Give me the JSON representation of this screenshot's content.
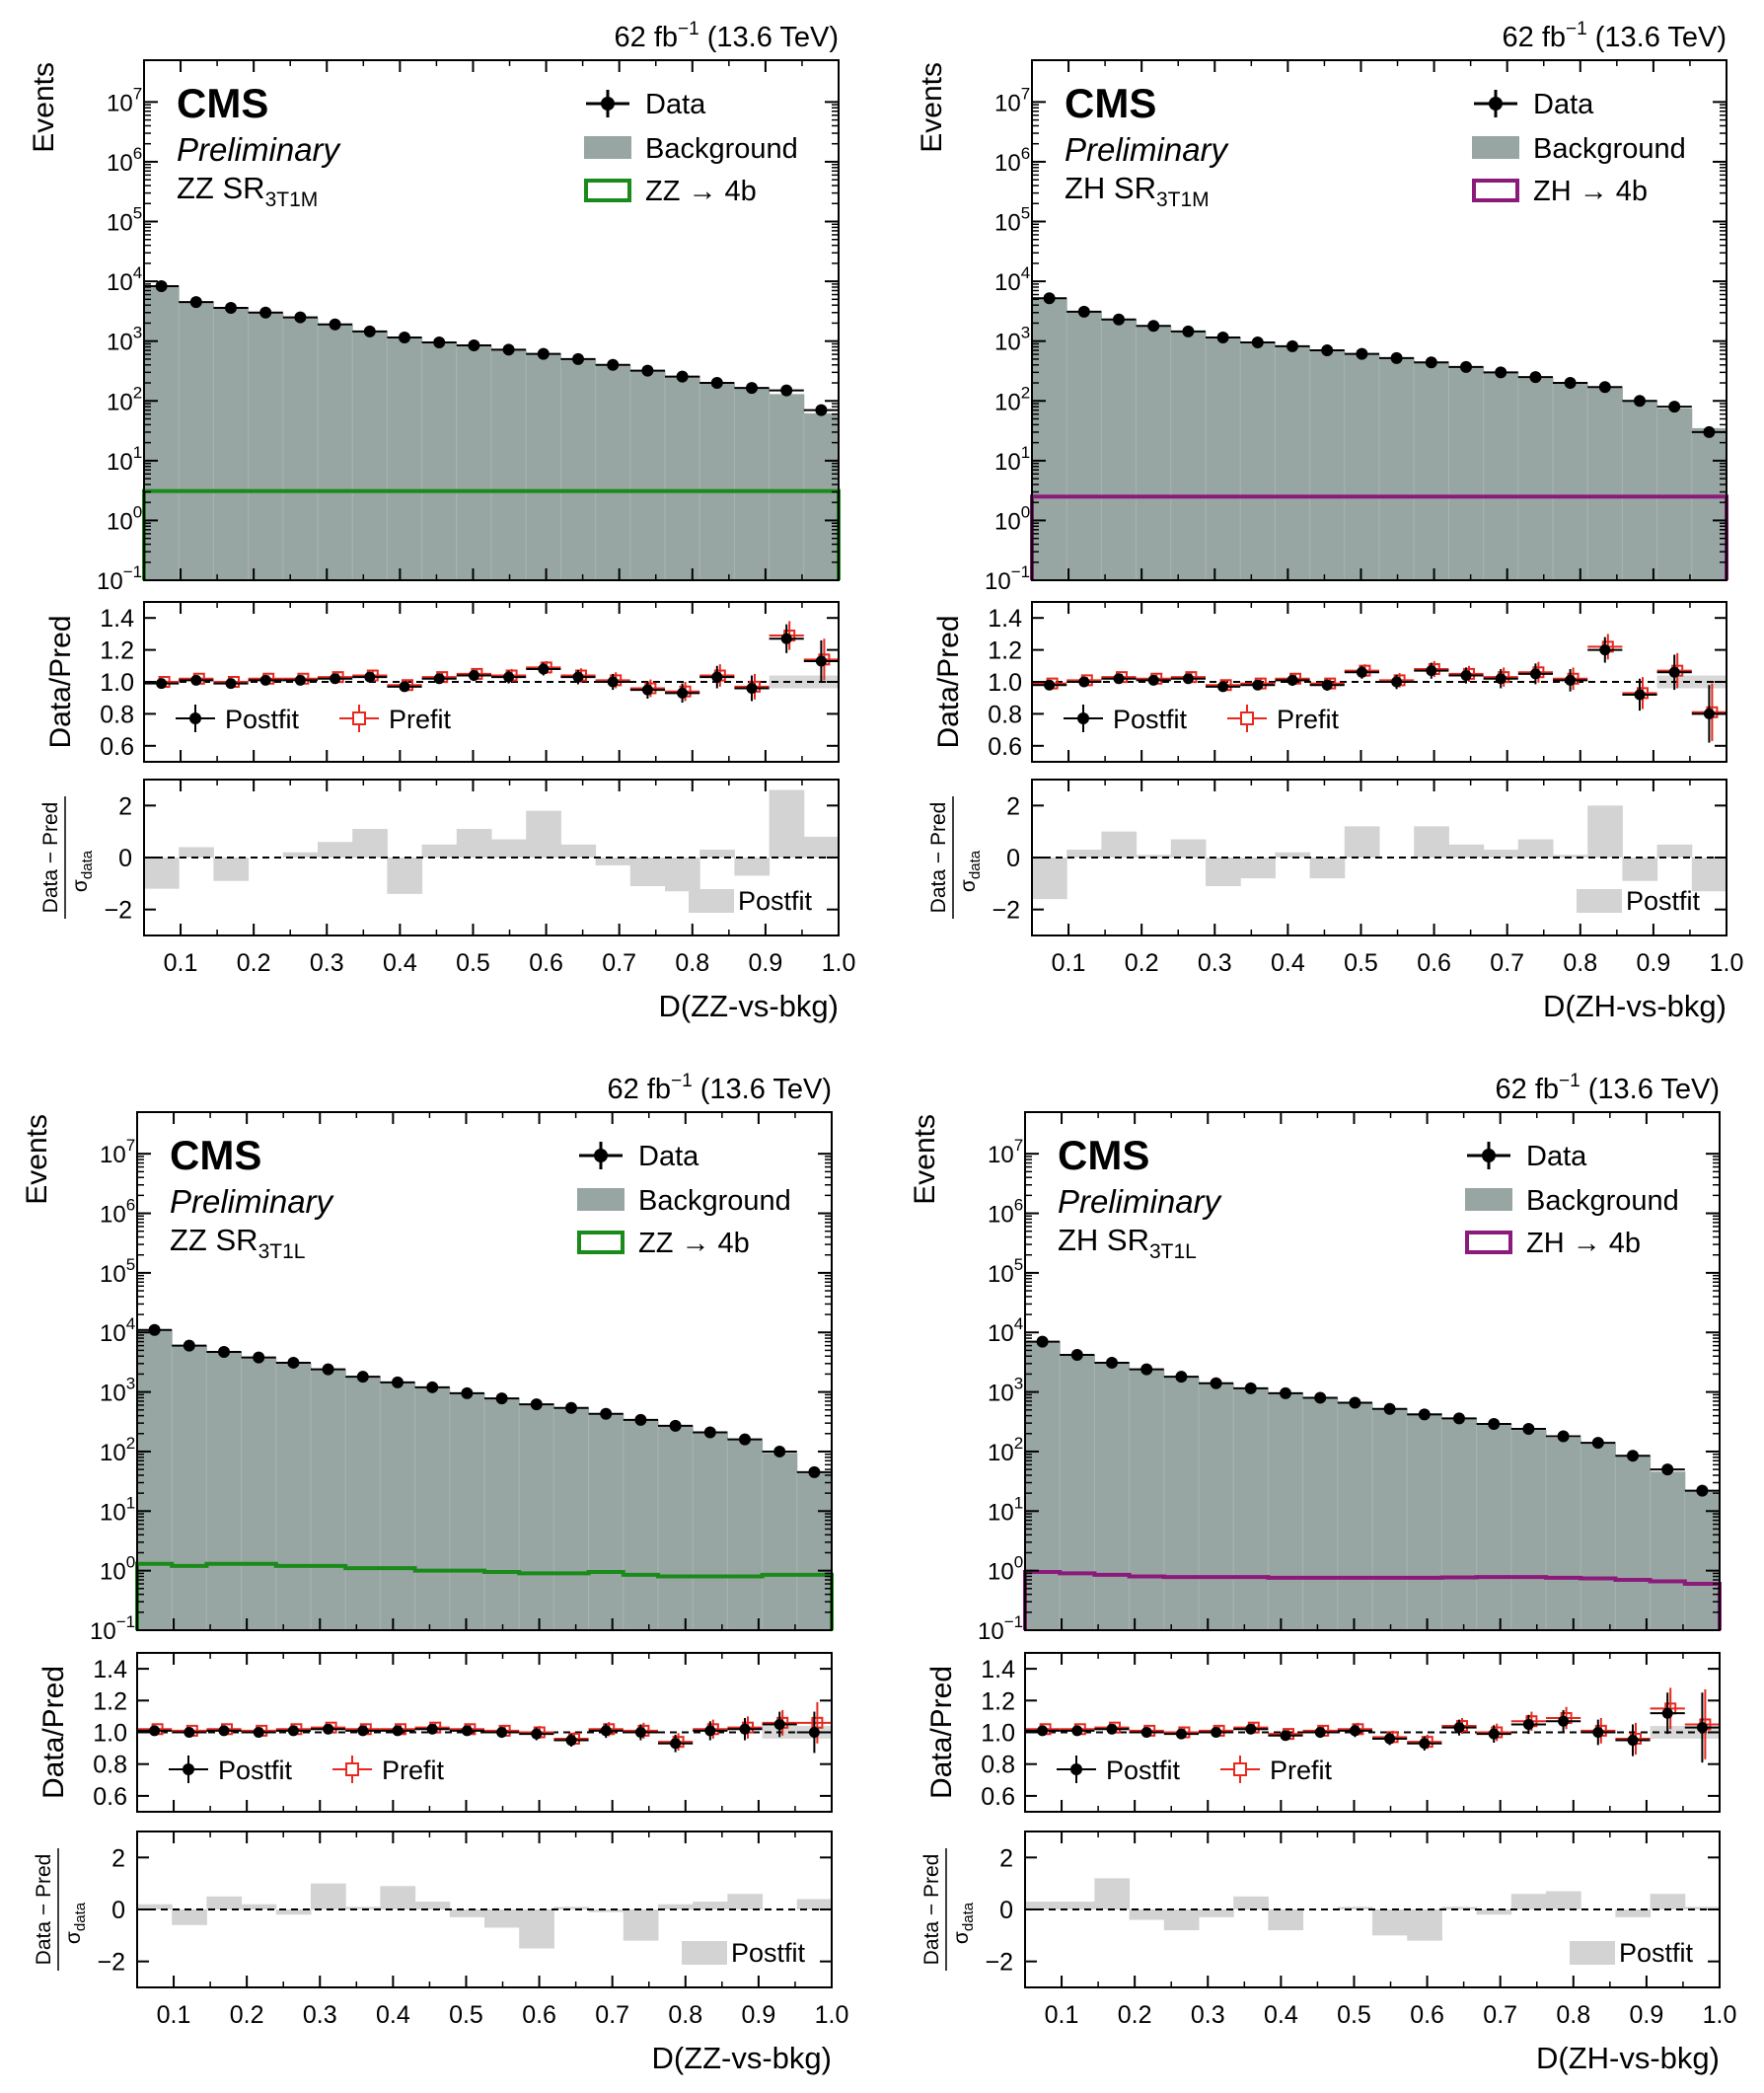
{
  "figure": {
    "chart_data": [
      {
        "type": "bar",
        "id": "zz-3t1m",
        "lumi_label": "62 fb",
        "lumi_exp": "−1",
        "energy": " (13.6 TeV)",
        "experiment": "CMS",
        "status": "Preliminary",
        "region_prefix": "ZZ SR",
        "region_sub": "3T1M",
        "xlabel": "D(ZZ-vs-bkg)",
        "ylabel": "Events",
        "ratio_ylabel": "Data/Pred",
        "pull_ylabel_num": "Data − Pred",
        "pull_ylabel_den": "σ",
        "pull_ylabel_den_sub": "data",
        "xlim": [
          0.05,
          1.0
        ],
        "ylim": [
          0.1,
          50000000
        ],
        "ratio_ylim": [
          0.5,
          1.5
        ],
        "pull_ylim": [
          -3,
          3
        ],
        "xticks": [
          "0.1",
          "0.2",
          "0.3",
          "0.4",
          "0.5",
          "0.6",
          "0.7",
          "0.8",
          "0.9",
          "1.0"
        ],
        "ratio_yticks": [
          "0.6",
          "0.8",
          "1.0",
          "1.2",
          "1.4"
        ],
        "pull_yticks": [
          "−2",
          "0",
          "2"
        ],
        "legend": {
          "data": "Data",
          "background": "Background",
          "signal": "ZZ → 4b"
        },
        "ratio_legend": {
          "postfit": "Postfit",
          "prefit": "Prefit"
        },
        "pull_legend": "Postfit",
        "signal_color": "#1a8a1a",
        "bins": [
          0.05,
          0.0975,
          0.145,
          0.1925,
          0.24,
          0.2875,
          0.335,
          0.3825,
          0.43,
          0.4775,
          0.525,
          0.5725,
          0.62,
          0.6675,
          0.715,
          0.7625,
          0.81,
          0.8575,
          0.905,
          0.9525,
          1.0
        ],
        "data": [
          8300,
          4500,
          3600,
          3000,
          2500,
          1900,
          1450,
          1150,
          950,
          850,
          720,
          610,
          500,
          400,
          320,
          255,
          200,
          165,
          150,
          70
        ],
        "background": [
          8200,
          4400,
          3580,
          2950,
          2450,
          1860,
          1420,
          1160,
          930,
          830,
          700,
          600,
          490,
          400,
          325,
          260,
          195,
          165,
          130,
          62
        ],
        "signal": [
          3.1,
          3.1,
          3.1,
          3.1,
          3.1,
          3.1,
          3.1,
          3.1,
          3.1,
          3.1,
          3.1,
          3.1,
          3.1,
          3.1,
          3.1,
          3.1,
          3.1,
          3.1,
          3.1,
          3.1
        ],
        "ratio_postfit": [
          0.99,
          1.01,
          0.99,
          1.01,
          1.01,
          1.02,
          1.03,
          0.97,
          1.02,
          1.04,
          1.03,
          1.08,
          1.03,
          1.0,
          0.95,
          0.93,
          1.03,
          0.96,
          1.27,
          1.13
        ],
        "ratio_prefit": [
          1.0,
          1.02,
          1.0,
          1.02,
          1.02,
          1.03,
          1.04,
          0.98,
          1.03,
          1.05,
          1.04,
          1.09,
          1.04,
          1.01,
          0.96,
          0.94,
          1.04,
          0.97,
          1.29,
          1.14
        ],
        "ratio_err": [
          0.01,
          0.015,
          0.015,
          0.02,
          0.02,
          0.025,
          0.025,
          0.03,
          0.03,
          0.035,
          0.04,
          0.04,
          0.045,
          0.05,
          0.055,
          0.06,
          0.07,
          0.08,
          0.09,
          0.13
        ],
        "pull": [
          -1.2,
          0.4,
          -0.9,
          0.0,
          0.2,
          0.6,
          1.1,
          -1.4,
          0.5,
          1.1,
          0.7,
          1.8,
          0.5,
          -0.3,
          -1.1,
          -1.3,
          0.3,
          -0.7,
          2.6,
          0.8
        ]
      },
      {
        "type": "bar",
        "id": "zh-3t1m",
        "lumi_label": "62 fb",
        "lumi_exp": "−1",
        "energy": " (13.6 TeV)",
        "experiment": "CMS",
        "status": "Preliminary",
        "region_prefix": "ZH SR",
        "region_sub": "3T1M",
        "xlabel": "D(ZH-vs-bkg)",
        "ylabel": "Events",
        "ratio_ylabel": "Data/Pred",
        "pull_ylabel_num": "Data − Pred",
        "pull_ylabel_den": "σ",
        "pull_ylabel_den_sub": "data",
        "xlim": [
          0.05,
          1.0
        ],
        "ylim": [
          0.1,
          50000000
        ],
        "ratio_ylim": [
          0.5,
          1.5
        ],
        "pull_ylim": [
          -3,
          3
        ],
        "xticks": [
          "0.1",
          "0.2",
          "0.3",
          "0.4",
          "0.5",
          "0.6",
          "0.7",
          "0.8",
          "0.9",
          "1.0"
        ],
        "ratio_yticks": [
          "0.6",
          "0.8",
          "1.0",
          "1.2",
          "1.4"
        ],
        "pull_yticks": [
          "−2",
          "0",
          "2"
        ],
        "legend": {
          "data": "Data",
          "background": "Background",
          "signal": "ZH → 4b"
        },
        "ratio_legend": {
          "postfit": "Postfit",
          "prefit": "Prefit"
        },
        "pull_legend": "Postfit",
        "signal_color": "#8b1a7a",
        "bins": [
          0.05,
          0.0975,
          0.145,
          0.1925,
          0.24,
          0.2875,
          0.335,
          0.3825,
          0.43,
          0.4775,
          0.525,
          0.5725,
          0.62,
          0.6675,
          0.715,
          0.7625,
          0.81,
          0.8575,
          0.905,
          0.9525,
          1.0
        ],
        "data": [
          5200,
          3100,
          2300,
          1800,
          1450,
          1150,
          950,
          820,
          700,
          610,
          520,
          440,
          370,
          300,
          250,
          200,
          170,
          100,
          80,
          30
        ],
        "background": [
          5150,
          3050,
          2270,
          1780,
          1430,
          1150,
          950,
          810,
          700,
          600,
          510,
          430,
          365,
          300,
          245,
          195,
          165,
          100,
          75,
          35
        ],
        "signal": [
          2.5,
          2.5,
          2.5,
          2.5,
          2.5,
          2.5,
          2.5,
          2.5,
          2.5,
          2.5,
          2.5,
          2.5,
          2.5,
          2.5,
          2.5,
          2.5,
          2.5,
          2.5,
          2.5,
          2.5
        ],
        "ratio_postfit": [
          0.98,
          1.0,
          1.02,
          1.01,
          1.02,
          0.97,
          0.98,
          1.01,
          0.98,
          1.06,
          1.0,
          1.07,
          1.04,
          1.02,
          1.05,
          1.01,
          1.2,
          0.92,
          1.06,
          0.8
        ],
        "ratio_prefit": [
          0.99,
          1.01,
          1.03,
          1.02,
          1.03,
          0.98,
          0.99,
          1.02,
          0.99,
          1.07,
          1.01,
          1.08,
          1.05,
          1.03,
          1.06,
          1.02,
          1.22,
          0.93,
          1.07,
          0.81
        ],
        "ratio_err": [
          0.015,
          0.02,
          0.02,
          0.025,
          0.025,
          0.03,
          0.03,
          0.035,
          0.035,
          0.04,
          0.045,
          0.05,
          0.05,
          0.06,
          0.065,
          0.07,
          0.08,
          0.1,
          0.11,
          0.18
        ],
        "pull": [
          -1.6,
          0.3,
          1.0,
          0.1,
          0.7,
          -1.1,
          -0.8,
          0.2,
          -0.8,
          1.2,
          0.0,
          1.2,
          0.5,
          0.3,
          0.7,
          0.1,
          2.0,
          -0.9,
          0.5,
          -1.3
        ]
      },
      {
        "type": "bar",
        "id": "zz-3t1l",
        "lumi_label": "62 fb",
        "lumi_exp": "−1",
        "energy": " (13.6 TeV)",
        "experiment": "CMS",
        "status": "Preliminary",
        "region_prefix": "ZZ SR",
        "region_sub": "3T1L",
        "xlabel": "D(ZZ-vs-bkg)",
        "ylabel": "Events",
        "ratio_ylabel": "Data/Pred",
        "pull_ylabel_num": "Data − Pred",
        "pull_ylabel_den": "σ",
        "pull_ylabel_den_sub": "data",
        "xlim": [
          0.05,
          1.0
        ],
        "ylim": [
          0.1,
          50000000
        ],
        "ratio_ylim": [
          0.5,
          1.5
        ],
        "pull_ylim": [
          -3,
          3
        ],
        "xticks": [
          "0.1",
          "0.2",
          "0.3",
          "0.4",
          "0.5",
          "0.6",
          "0.7",
          "0.8",
          "0.9",
          "1.0"
        ],
        "ratio_yticks": [
          "0.6",
          "0.8",
          "1.0",
          "1.2",
          "1.4"
        ],
        "pull_yticks": [
          "−2",
          "0",
          "2"
        ],
        "legend": {
          "data": "Data",
          "background": "Background",
          "signal": "ZZ → 4b"
        },
        "ratio_legend": {
          "postfit": "Postfit",
          "prefit": "Prefit"
        },
        "pull_legend": "Postfit",
        "signal_color": "#1a8a1a",
        "bins": [
          0.05,
          0.0975,
          0.145,
          0.1925,
          0.24,
          0.2875,
          0.335,
          0.3825,
          0.43,
          0.4775,
          0.525,
          0.5725,
          0.62,
          0.6675,
          0.715,
          0.7625,
          0.81,
          0.8575,
          0.905,
          0.9525,
          1.0
        ],
        "data": [
          11000,
          6000,
          4700,
          3800,
          3100,
          2400,
          1800,
          1450,
          1200,
          950,
          780,
          620,
          540,
          430,
          340,
          270,
          210,
          160,
          100,
          45
        ],
        "background": [
          10900,
          5950,
          4680,
          3750,
          3050,
          2370,
          1780,
          1430,
          1180,
          950,
          780,
          630,
          540,
          425,
          345,
          270,
          205,
          155,
          95,
          43
        ],
        "signal": [
          1.3,
          1.2,
          1.3,
          1.3,
          1.2,
          1.2,
          1.1,
          1.1,
          1.0,
          1.0,
          0.95,
          0.9,
          0.9,
          0.95,
          0.85,
          0.8,
          0.8,
          0.8,
          0.85,
          0.85
        ],
        "ratio_postfit": [
          1.01,
          1.0,
          1.01,
          1.0,
          1.01,
          1.02,
          1.01,
          1.01,
          1.02,
          1.01,
          1.0,
          0.99,
          0.95,
          1.01,
          1.0,
          0.93,
          1.01,
          1.02,
          1.05,
          1.0
        ],
        "ratio_prefit": [
          1.02,
          1.01,
          1.02,
          1.01,
          1.02,
          1.03,
          1.02,
          1.02,
          1.03,
          1.02,
          1.01,
          1.0,
          0.96,
          1.02,
          1.01,
          0.94,
          1.02,
          1.03,
          1.06,
          1.06
        ],
        "ratio_err": [
          0.01,
          0.015,
          0.015,
          0.02,
          0.02,
          0.02,
          0.025,
          0.025,
          0.03,
          0.03,
          0.035,
          0.04,
          0.04,
          0.045,
          0.05,
          0.055,
          0.06,
          0.07,
          0.08,
          0.13
        ],
        "pull": [
          0.2,
          -0.6,
          0.5,
          0.2,
          -0.2,
          1.0,
          0.1,
          0.9,
          0.3,
          -0.3,
          -0.7,
          -1.5,
          0.1,
          -0.1,
          -1.2,
          0.2,
          0.3,
          0.6,
          0.0,
          0.4
        ]
      },
      {
        "type": "bar",
        "id": "zh-3t1l",
        "lumi_label": "62 fb",
        "lumi_exp": "−1",
        "energy": " (13.6 TeV)",
        "experiment": "CMS",
        "status": "Preliminary",
        "region_prefix": "ZH SR",
        "region_sub": "3T1L",
        "xlabel": "D(ZH-vs-bkg)",
        "ylabel": "Events",
        "ratio_ylabel": "Data/Pred",
        "pull_ylabel_num": "Data − Pred",
        "pull_ylabel_den": "σ",
        "pull_ylabel_den_sub": "data",
        "xlim": [
          0.05,
          1.0
        ],
        "ylim": [
          0.1,
          50000000
        ],
        "ratio_ylim": [
          0.5,
          1.5
        ],
        "pull_ylim": [
          -3,
          3
        ],
        "xticks": [
          "0.1",
          "0.2",
          "0.3",
          "0.4",
          "0.5",
          "0.6",
          "0.7",
          "0.8",
          "0.9",
          "1.0"
        ],
        "ratio_yticks": [
          "0.6",
          "0.8",
          "1.0",
          "1.2",
          "1.4"
        ],
        "pull_yticks": [
          "−2",
          "0",
          "2"
        ],
        "legend": {
          "data": "Data",
          "background": "Background",
          "signal": "ZH → 4b"
        },
        "ratio_legend": {
          "postfit": "Postfit",
          "prefit": "Prefit"
        },
        "pull_legend": "Postfit",
        "signal_color": "#8b1a7a",
        "bins": [
          0.05,
          0.0975,
          0.145,
          0.1925,
          0.24,
          0.2875,
          0.335,
          0.3825,
          0.43,
          0.4775,
          0.525,
          0.5725,
          0.62,
          0.6675,
          0.715,
          0.7625,
          0.81,
          0.8575,
          0.905,
          0.9525,
          1.0
        ],
        "data": [
          7000,
          4200,
          3100,
          2400,
          1800,
          1400,
          1150,
          950,
          800,
          660,
          520,
          420,
          360,
          290,
          240,
          180,
          140,
          85,
          50,
          22
        ],
        "background": [
          6950,
          4180,
          3050,
          2380,
          1790,
          1380,
          1130,
          960,
          790,
          650,
          530,
          440,
          370,
          290,
          230,
          170,
          135,
          85,
          46,
          22
        ],
        "signal": [
          0.95,
          0.9,
          0.85,
          0.8,
          0.78,
          0.78,
          0.78,
          0.76,
          0.76,
          0.76,
          0.76,
          0.76,
          0.77,
          0.78,
          0.78,
          0.76,
          0.74,
          0.7,
          0.66,
          0.6
        ],
        "ratio_postfit": [
          1.01,
          1.01,
          1.02,
          1.0,
          0.99,
          1.0,
          1.02,
          0.98,
          1.0,
          1.01,
          0.96,
          0.93,
          1.03,
          0.99,
          1.05,
          1.07,
          1.0,
          0.95,
          1.12,
          1.03
        ],
        "ratio_prefit": [
          1.02,
          1.02,
          1.03,
          1.01,
          1.0,
          1.01,
          1.03,
          0.99,
          1.01,
          1.02,
          0.97,
          0.94,
          1.04,
          1.0,
          1.07,
          1.09,
          1.01,
          0.96,
          1.15,
          1.05
        ],
        "ratio_err": [
          0.01,
          0.015,
          0.02,
          0.02,
          0.025,
          0.025,
          0.03,
          0.03,
          0.035,
          0.04,
          0.04,
          0.045,
          0.05,
          0.055,
          0.06,
          0.07,
          0.08,
          0.1,
          0.13,
          0.22
        ],
        "pull": [
          0.3,
          0.3,
          1.2,
          -0.4,
          -0.8,
          -0.3,
          0.5,
          -0.8,
          0.0,
          0.1,
          -1.0,
          -1.2,
          0.1,
          -0.2,
          0.6,
          0.7,
          0.0,
          -0.3,
          0.6,
          0.1
        ]
      }
    ]
  }
}
